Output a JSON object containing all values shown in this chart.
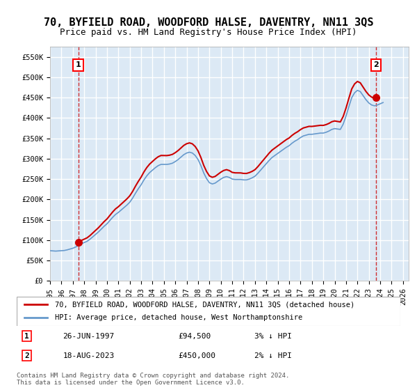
{
  "title": "70, BYFIELD ROAD, WOODFORD HALSE, DAVENTRY, NN11 3QS",
  "subtitle": "Price paid vs. HM Land Registry's House Price Index (HPI)",
  "ylabel_ticks": [
    "£0",
    "£50K",
    "£100K",
    "£150K",
    "£200K",
    "£250K",
    "£300K",
    "£350K",
    "£400K",
    "£450K",
    "£500K",
    "£550K"
  ],
  "ytick_values": [
    0,
    50000,
    100000,
    150000,
    200000,
    250000,
    300000,
    350000,
    400000,
    450000,
    500000,
    550000
  ],
  "ylim": [
    0,
    575000
  ],
  "xlim_start": 1995.0,
  "xlim_end": 2026.5,
  "xticks": [
    1995,
    1996,
    1997,
    1998,
    1999,
    2000,
    2001,
    2002,
    2003,
    2004,
    2005,
    2006,
    2007,
    2008,
    2009,
    2010,
    2011,
    2012,
    2013,
    2014,
    2015,
    2016,
    2017,
    2018,
    2019,
    2020,
    2021,
    2022,
    2023,
    2024,
    2025,
    2026
  ],
  "background_color": "#dce9f5",
  "grid_color": "#ffffff",
  "hpi_line_color": "#6699cc",
  "price_line_color": "#cc0000",
  "sale1_x": 1997.484,
  "sale1_y": 94500,
  "sale2_x": 2023.633,
  "sale2_y": 450000,
  "sale1_label": "1",
  "sale2_label": "2",
  "legend_line1": "70, BYFIELD ROAD, WOODFORD HALSE, DAVENTRY, NN11 3QS (detached house)",
  "legend_line2": "HPI: Average price, detached house, West Northamptonshire",
  "table_row1": [
    "1",
    "26-JUN-1997",
    "£94,500",
    "3% ↓ HPI"
  ],
  "table_row2": [
    "2",
    "18-AUG-2023",
    "£450,000",
    "2% ↓ HPI"
  ],
  "footer": "Contains HM Land Registry data © Crown copyright and database right 2024.\nThis data is licensed under the Open Government Licence v3.0.",
  "title_fontsize": 11,
  "subtitle_fontsize": 9,
  "tick_fontsize": 7.5,
  "hpi_data_x": [
    1995.0,
    1995.25,
    1995.5,
    1995.75,
    1996.0,
    1996.25,
    1996.5,
    1996.75,
    1997.0,
    1997.25,
    1997.5,
    1997.75,
    1998.0,
    1998.25,
    1998.5,
    1998.75,
    1999.0,
    1999.25,
    1999.5,
    1999.75,
    2000.0,
    2000.25,
    2000.5,
    2000.75,
    2001.0,
    2001.25,
    2001.5,
    2001.75,
    2002.0,
    2002.25,
    2002.5,
    2002.75,
    2003.0,
    2003.25,
    2003.5,
    2003.75,
    2004.0,
    2004.25,
    2004.5,
    2004.75,
    2005.0,
    2005.25,
    2005.5,
    2005.75,
    2006.0,
    2006.25,
    2006.5,
    2006.75,
    2007.0,
    2007.25,
    2007.5,
    2007.75,
    2008.0,
    2008.25,
    2008.5,
    2008.75,
    2009.0,
    2009.25,
    2009.5,
    2009.75,
    2010.0,
    2010.25,
    2010.5,
    2010.75,
    2011.0,
    2011.25,
    2011.5,
    2011.75,
    2012.0,
    2012.25,
    2012.5,
    2012.75,
    2013.0,
    2013.25,
    2013.5,
    2013.75,
    2014.0,
    2014.25,
    2014.5,
    2014.75,
    2015.0,
    2015.25,
    2015.5,
    2015.75,
    2016.0,
    2016.25,
    2016.5,
    2016.75,
    2017.0,
    2017.25,
    2017.5,
    2017.75,
    2018.0,
    2018.25,
    2018.5,
    2018.75,
    2019.0,
    2019.25,
    2019.5,
    2019.75,
    2020.0,
    2020.25,
    2020.5,
    2020.75,
    2021.0,
    2021.25,
    2021.5,
    2021.75,
    2022.0,
    2022.25,
    2022.5,
    2022.75,
    2023.0,
    2023.25,
    2023.5,
    2023.75,
    2024.0,
    2024.25
  ],
  "hpi_data_y": [
    74000,
    73500,
    73000,
    73500,
    74000,
    74500,
    76000,
    78000,
    80000,
    83000,
    87000,
    91000,
    94000,
    97000,
    102000,
    108000,
    114000,
    120000,
    127000,
    134000,
    140000,
    148000,
    156000,
    163000,
    168000,
    174000,
    180000,
    186000,
    193000,
    203000,
    215000,
    226000,
    236000,
    248000,
    258000,
    266000,
    272000,
    278000,
    283000,
    286000,
    286000,
    286000,
    287000,
    289000,
    293000,
    298000,
    304000,
    310000,
    314000,
    316000,
    314000,
    308000,
    298000,
    283000,
    265000,
    251000,
    241000,
    238000,
    240000,
    245000,
    250000,
    254000,
    256000,
    254000,
    250000,
    249000,
    249000,
    249000,
    248000,
    248000,
    250000,
    253000,
    257000,
    264000,
    272000,
    280000,
    288000,
    296000,
    303000,
    308000,
    313000,
    318000,
    323000,
    328000,
    332000,
    338000,
    343000,
    347000,
    352000,
    356000,
    358000,
    360000,
    360000,
    361000,
    362000,
    363000,
    363000,
    365000,
    368000,
    372000,
    374000,
    373000,
    372000,
    385000,
    405000,
    428000,
    450000,
    462000,
    468000,
    465000,
    455000,
    445000,
    437000,
    432000,
    430000,
    432000,
    435000,
    438000
  ],
  "price_data_x": [
    1997.484,
    2023.633
  ],
  "price_data_y": [
    94500,
    450000
  ]
}
